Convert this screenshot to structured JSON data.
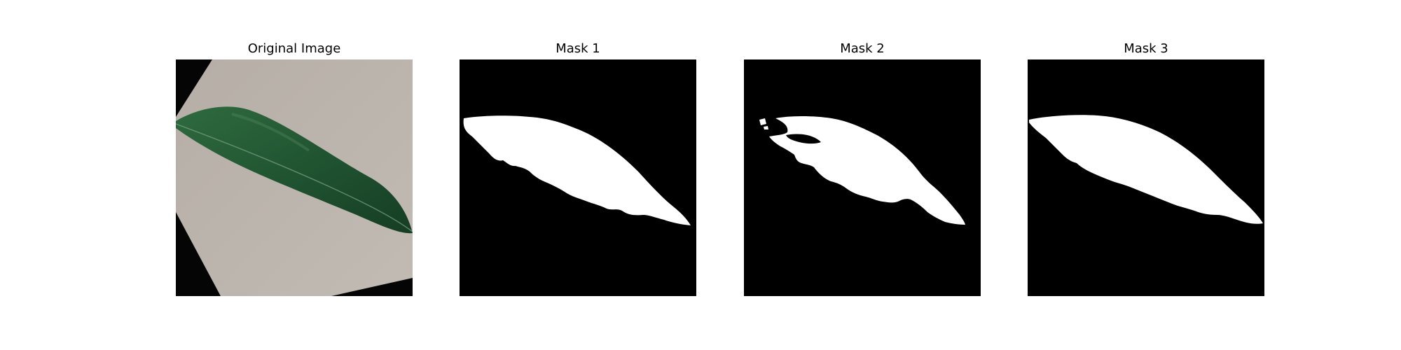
{
  "figure": {
    "panels": [
      {
        "title": "Original Image",
        "kind": "photo"
      },
      {
        "title": "Mask 1",
        "kind": "mask"
      },
      {
        "title": "Mask 2",
        "kind": "mask"
      },
      {
        "title": "Mask 3",
        "kind": "mask"
      }
    ]
  },
  "colors": {
    "background": "#ffffff",
    "mask_background": "#000000",
    "mask_foreground": "#ffffff",
    "leaf_dark": "#163d23",
    "leaf_mid": "#2f6a3e",
    "paper": "#b8b1aa"
  }
}
